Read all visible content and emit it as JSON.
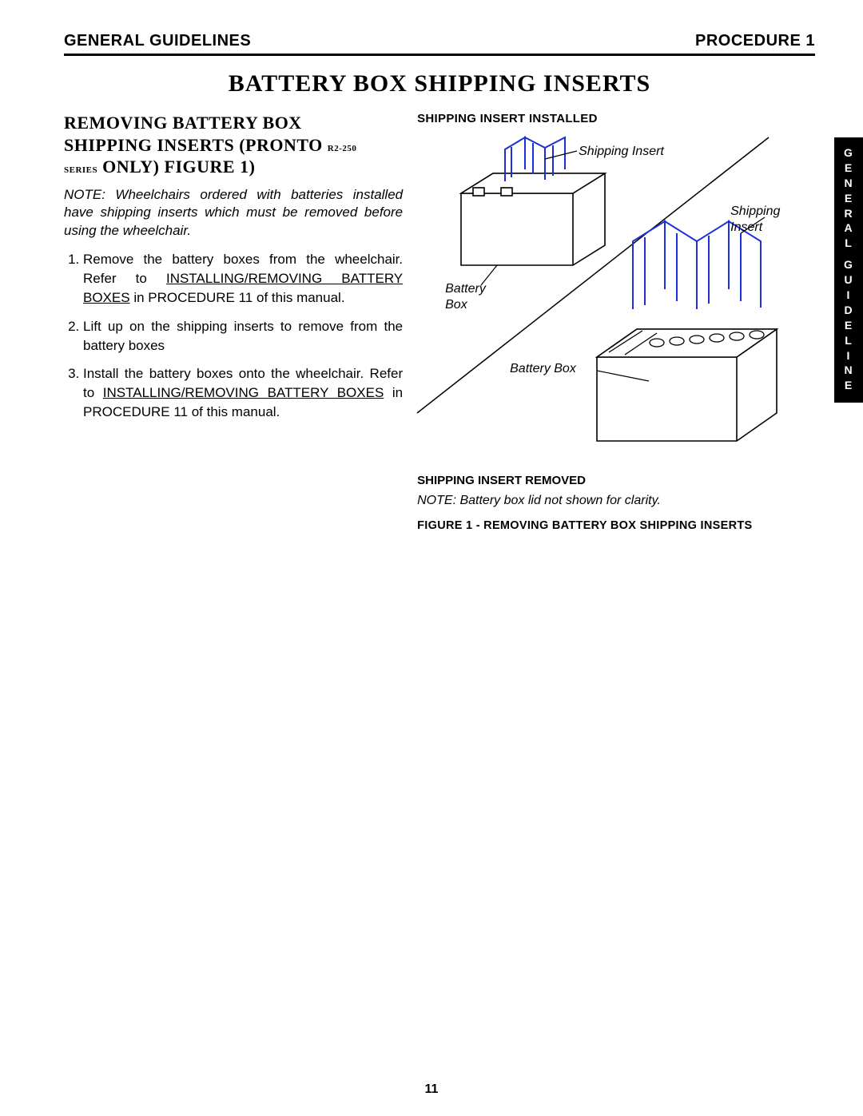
{
  "header": {
    "left": "GENERAL GUIDELINES",
    "right": "PROCEDURE 1"
  },
  "title": "BATTERY BOX SHIPPING INSERTS",
  "section_heading": {
    "line1": "REMOVING BATTERY BOX",
    "line2a": "SHIPPING INSERTS (PRONTO ",
    "line2_sub": "R2-250",
    "line3_sub": "SERIES",
    "line3b": " ONLY) FIGURE 1)"
  },
  "note_main": "NOTE: Wheelchairs ordered with batteries installed have shipping inserts which must be removed before using the wheelchair.",
  "steps": [
    {
      "pre": "Remove the battery boxes from the wheelchair. Refer to ",
      "underline": "INSTALLING/REMOVING BATTERY BOXES",
      "post": " in PROCEDURE 11 of this manual."
    },
    {
      "pre": "Lift up on the shipping inserts to remove from the battery boxes",
      "underline": "",
      "post": ""
    },
    {
      "pre": "Install the battery boxes onto the wheelchair. Refer to ",
      "underline": "INSTALLING/REMOVING BATTERY BOXES",
      "post": " in PROCEDURE 11 of this manual."
    }
  ],
  "figure": {
    "heading_installed": "SHIPPING INSERT INSTALLED",
    "heading_removed": "SHIPPING INSERT REMOVED",
    "label_shipping_insert": "Shipping Insert",
    "label_shipping": "Shipping",
    "label_insert": "Insert",
    "label_battery": "Battery",
    "label_box": "Box",
    "label_battery_box": "Battery Box",
    "note": "NOTE: Battery box lid not shown for clarity.",
    "caption": "FIGURE 1 - REMOVING BATTERY BOX SHIPPING INSERTS",
    "colors": {
      "line": "#000000",
      "insert_stroke": "#1a2fd8",
      "background": "#ffffff"
    }
  },
  "side_tab": {
    "word1": "GENERAL",
    "word2": "GUIDELINE"
  },
  "page_number": "11"
}
